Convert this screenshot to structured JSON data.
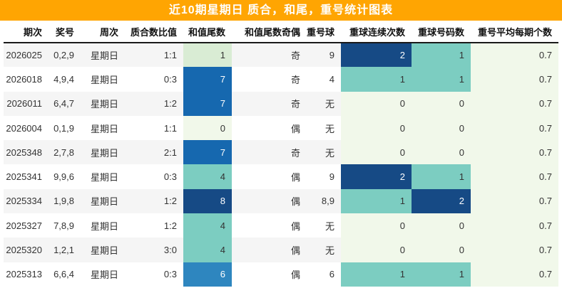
{
  "header": {
    "title": "近10期星期日 质合，和尾，重号统计图表",
    "bg": "#ffa502",
    "fg": "#ffffff"
  },
  "chart_data": {
    "type": "table",
    "title": "近10期星期日 质合，和尾，重号统计图表",
    "columns": [
      "期次",
      "奖号",
      "周次",
      "质合数比值",
      "和值尾数",
      "和值尾数奇偶",
      "重号球",
      "重球连续次数",
      "重球号码数",
      "重号平均每期个数"
    ],
    "heat_palette": {
      "value_0": "#f1f8ea",
      "value_1": "#d9ecd4",
      "value_4": "#7ccdc1",
      "value_6": "#2e86bf",
      "value_7": "#1668af",
      "value_8": "#164a85",
      "count_0": "#f1f8ea",
      "count_1": "#7ccdc1",
      "count_2": "#164a85",
      "avg_col": "#f1f8ea"
    },
    "rows": [
      {
        "period": "2026025",
        "prize": "0,2,9",
        "week": "星期日",
        "ratio": "1:1",
        "sum_tail": "1",
        "sum_tail_bg": "#d9ecd4",
        "sum_tail_fg": "#333333",
        "parity": "奇",
        "repeat_ball": "9",
        "cons": "2",
        "cons_bg": "#164a85",
        "cons_fg": "#ffffff",
        "cnt": "1",
        "cnt_bg": "#7ccdc1",
        "cnt_fg": "#333333",
        "avg": "0.7",
        "avg_bg": "#f1f8ea",
        "avg_fg": "#333333"
      },
      {
        "period": "2026018",
        "prize": "4,9,4",
        "week": "星期日",
        "ratio": "0:3",
        "sum_tail": "7",
        "sum_tail_bg": "#1668af",
        "sum_tail_fg": "#ffffff",
        "parity": "奇",
        "repeat_ball": "4",
        "cons": "1",
        "cons_bg": "#7ccdc1",
        "cons_fg": "#333333",
        "cnt": "1",
        "cnt_bg": "#7ccdc1",
        "cnt_fg": "#333333",
        "avg": "0.7",
        "avg_bg": "#f1f8ea",
        "avg_fg": "#333333"
      },
      {
        "period": "2026011",
        "prize": "6,4,7",
        "week": "星期日",
        "ratio": "1:2",
        "sum_tail": "7",
        "sum_tail_bg": "#1668af",
        "sum_tail_fg": "#ffffff",
        "parity": "奇",
        "repeat_ball": "无",
        "cons": "0",
        "cons_bg": "#f1f8ea",
        "cons_fg": "#333333",
        "cnt": "0",
        "cnt_bg": "#f1f8ea",
        "cnt_fg": "#333333",
        "avg": "0.7",
        "avg_bg": "#f1f8ea",
        "avg_fg": "#333333"
      },
      {
        "period": "2026004",
        "prize": "0,1,9",
        "week": "星期日",
        "ratio": "1:1",
        "sum_tail": "0",
        "sum_tail_bg": "#f1f8ea",
        "sum_tail_fg": "#333333",
        "parity": "偶",
        "repeat_ball": "无",
        "cons": "0",
        "cons_bg": "#f1f8ea",
        "cons_fg": "#333333",
        "cnt": "0",
        "cnt_bg": "#f1f8ea",
        "cnt_fg": "#333333",
        "avg": "0.7",
        "avg_bg": "#f1f8ea",
        "avg_fg": "#333333"
      },
      {
        "period": "2025348",
        "prize": "2,7,8",
        "week": "星期日",
        "ratio": "2:1",
        "sum_tail": "7",
        "sum_tail_bg": "#1668af",
        "sum_tail_fg": "#ffffff",
        "parity": "奇",
        "repeat_ball": "无",
        "cons": "0",
        "cons_bg": "#f1f8ea",
        "cons_fg": "#333333",
        "cnt": "0",
        "cnt_bg": "#f1f8ea",
        "cnt_fg": "#333333",
        "avg": "0.7",
        "avg_bg": "#f1f8ea",
        "avg_fg": "#333333"
      },
      {
        "period": "2025341",
        "prize": "9,9,6",
        "week": "星期日",
        "ratio": "0:3",
        "sum_tail": "4",
        "sum_tail_bg": "#7ccdc1",
        "sum_tail_fg": "#333333",
        "parity": "偶",
        "repeat_ball": "9",
        "cons": "2",
        "cons_bg": "#164a85",
        "cons_fg": "#ffffff",
        "cnt": "1",
        "cnt_bg": "#7ccdc1",
        "cnt_fg": "#333333",
        "avg": "0.7",
        "avg_bg": "#f1f8ea",
        "avg_fg": "#333333"
      },
      {
        "period": "2025334",
        "prize": "1,9,8",
        "week": "星期日",
        "ratio": "1:2",
        "sum_tail": "8",
        "sum_tail_bg": "#164a85",
        "sum_tail_fg": "#ffffff",
        "parity": "偶",
        "repeat_ball": "8,9",
        "cons": "1",
        "cons_bg": "#7ccdc1",
        "cons_fg": "#333333",
        "cnt": "2",
        "cnt_bg": "#164a85",
        "cnt_fg": "#ffffff",
        "avg": "0.7",
        "avg_bg": "#f1f8ea",
        "avg_fg": "#333333"
      },
      {
        "period": "2025327",
        "prize": "7,8,9",
        "week": "星期日",
        "ratio": "1:2",
        "sum_tail": "4",
        "sum_tail_bg": "#7ccdc1",
        "sum_tail_fg": "#333333",
        "parity": "偶",
        "repeat_ball": "无",
        "cons": "0",
        "cons_bg": "#f1f8ea",
        "cons_fg": "#333333",
        "cnt": "0",
        "cnt_bg": "#f1f8ea",
        "cnt_fg": "#333333",
        "avg": "0.7",
        "avg_bg": "#f1f8ea",
        "avg_fg": "#333333"
      },
      {
        "period": "2025320",
        "prize": "1,2,1",
        "week": "星期日",
        "ratio": "3:0",
        "sum_tail": "4",
        "sum_tail_bg": "#7ccdc1",
        "sum_tail_fg": "#333333",
        "parity": "偶",
        "repeat_ball": "无",
        "cons": "0",
        "cons_bg": "#f1f8ea",
        "cons_fg": "#333333",
        "cnt": "0",
        "cnt_bg": "#f1f8ea",
        "cnt_fg": "#333333",
        "avg": "0.7",
        "avg_bg": "#f1f8ea",
        "avg_fg": "#333333"
      },
      {
        "period": "2025313",
        "prize": "6,6,4",
        "week": "星期日",
        "ratio": "0:3",
        "sum_tail": "6",
        "sum_tail_bg": "#2e86bf",
        "sum_tail_fg": "#ffffff",
        "parity": "偶",
        "repeat_ball": "6",
        "cons": "1",
        "cons_bg": "#7ccdc1",
        "cons_fg": "#333333",
        "cnt": "1",
        "cnt_bg": "#7ccdc1",
        "cnt_fg": "#333333",
        "avg": "0.7",
        "avg_bg": "#f1f8ea",
        "avg_fg": "#333333"
      }
    ]
  }
}
